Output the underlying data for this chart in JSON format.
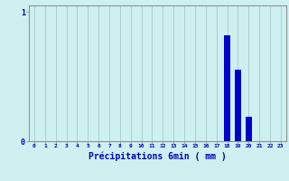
{
  "hours": [
    0,
    1,
    2,
    3,
    4,
    5,
    6,
    7,
    8,
    9,
    10,
    11,
    12,
    13,
    14,
    15,
    16,
    17,
    18,
    19,
    20,
    21,
    22,
    23
  ],
  "values": [
    0,
    0,
    0,
    0,
    0,
    0,
    0,
    0,
    0,
    0,
    0,
    0,
    0,
    0,
    0,
    0,
    0,
    0,
    0.82,
    0.55,
    0.19,
    0,
    0,
    0
  ],
  "bar_color": "#0000cc",
  "bg_color": "#cef0f0",
  "grid_color": "#aacece",
  "axis_line_color": "#909090",
  "xlabel": "Précipitations 6min ( mm )",
  "xlabel_color": "#0000cc",
  "tick_label_color": "#0000cc",
  "yticks": [
    0,
    1
  ],
  "ylim": [
    0,
    1.05
  ],
  "xlim": [
    -0.5,
    23.5
  ]
}
